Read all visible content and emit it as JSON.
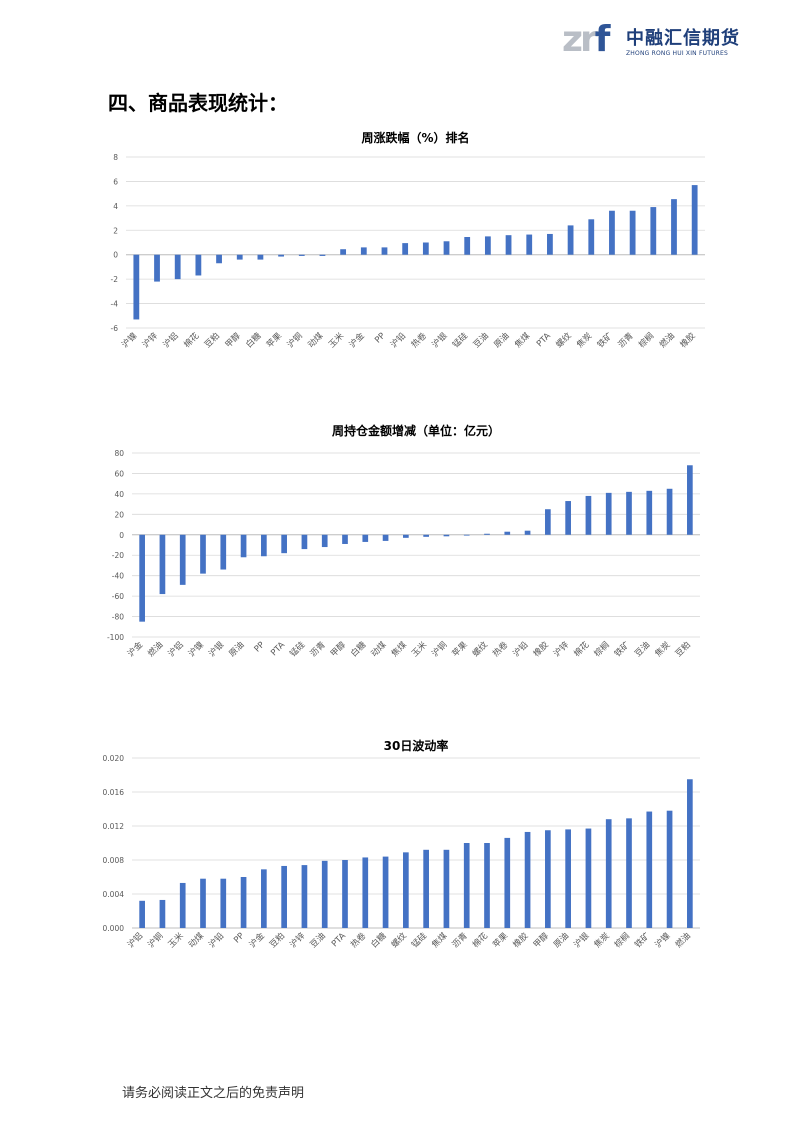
{
  "header": {
    "logo_mark_z": "z",
    "logo_mark_r": "r",
    "logo_mark_f": "f",
    "logo_cn": "中融汇信期货",
    "logo_en": "ZHONG RONG HUI XIN FUTURES"
  },
  "section_title": "四、商品表现统计：",
  "footer": "请务必阅读正文之后的免责声明",
  "colors": {
    "bar": "#4472c4",
    "grid": "#d9d9d9",
    "axis_text": "#595959"
  },
  "chart_data": [
    {
      "type": "bar",
      "title": "周涨跌幅（%）排名",
      "categories": [
        "沪镍",
        "沪锌",
        "沪铝",
        "棉花",
        "豆粕",
        "甲醇",
        "白糖",
        "苹果",
        "沪铜",
        "动煤",
        "玉米",
        "沪金",
        "PP",
        "沪铅",
        "热卷",
        "沪银",
        "锰硅",
        "豆油",
        "原油",
        "焦煤",
        "PTA",
        "螺纹",
        "焦炭",
        "铁矿",
        "沥青",
        "棕榈",
        "燃油",
        "橡胶"
      ],
      "values": [
        -5.3,
        -2.2,
        -2.0,
        -1.7,
        -0.7,
        -0.4,
        -0.4,
        -0.15,
        -0.1,
        -0.1,
        0.45,
        0.6,
        0.6,
        0.95,
        1.0,
        1.1,
        1.45,
        1.5,
        1.6,
        1.65,
        1.7,
        2.4,
        2.9,
        3.6,
        3.6,
        3.9,
        4.55,
        5.7
      ],
      "ylim": [
        -6,
        8
      ],
      "yticks": [
        -6,
        -4,
        -2,
        0,
        2,
        4,
        6,
        8
      ],
      "ytick_labels": [
        "-6",
        "-4",
        "-2",
        "0",
        "2",
        "4",
        "6",
        "8"
      ],
      "grid": true
    },
    {
      "type": "bar",
      "title": "周持仓金额增减（单位：亿元）",
      "categories": [
        "沪金",
        "燃油",
        "沪铝",
        "沪镍",
        "沪银",
        "原油",
        "PP",
        "PTA",
        "锰硅",
        "沥青",
        "甲醇",
        "白糖",
        "动煤",
        "焦煤",
        "玉米",
        "沪铜",
        "苹果",
        "螺纹",
        "热卷",
        "沪铅",
        "橡胶",
        "沪锌",
        "棉花",
        "棕榈",
        "铁矿",
        "豆油",
        "焦炭",
        "豆粕"
      ],
      "values": [
        -85,
        -58,
        -49,
        -38,
        -34,
        -22,
        -21,
        -18,
        -14,
        -12,
        -9,
        -7,
        -6,
        -3,
        -2,
        -1.5,
        -0.5,
        1,
        3,
        4,
        25,
        33,
        38,
        41,
        42,
        43,
        45,
        68
      ],
      "ylim": [
        -100,
        80
      ],
      "yticks": [
        -100,
        -80,
        -60,
        -40,
        -20,
        0,
        20,
        40,
        60,
        80
      ],
      "ytick_labels": [
        "-100",
        "-80",
        "-60",
        "-40",
        "-20",
        "0",
        "20",
        "40",
        "60",
        "80"
      ],
      "grid": true
    },
    {
      "type": "bar",
      "title": "30日波动率",
      "categories": [
        "沪铝",
        "沪铜",
        "玉米",
        "动煤",
        "沪铅",
        "PP",
        "沪金",
        "豆粕",
        "沪锌",
        "豆油",
        "PTA",
        "热卷",
        "白糖",
        "螺纹",
        "锰硅",
        "焦煤",
        "沥青",
        "棉花",
        "苹果",
        "橡胶",
        "甲醇",
        "原油",
        "沪银",
        "焦炭",
        "棕榈",
        "铁矿",
        "沪镍",
        "燃油"
      ],
      "values": [
        0.0032,
        0.0033,
        0.0053,
        0.0058,
        0.0058,
        0.006,
        0.0069,
        0.0073,
        0.0074,
        0.0079,
        0.008,
        0.0083,
        0.0084,
        0.0089,
        0.0092,
        0.0092,
        0.01,
        0.01,
        0.0106,
        0.0113,
        0.0115,
        0.0116,
        0.0117,
        0.0128,
        0.0129,
        0.0137,
        0.0138,
        0.0175
      ],
      "ylim": [
        0,
        0.02
      ],
      "yticks": [
        0,
        0.004,
        0.008,
        0.012,
        0.016,
        0.02
      ],
      "ytick_labels": [
        "0.000",
        "0.004",
        "0.008",
        "0.012",
        "0.016",
        "0.020"
      ],
      "grid": true
    }
  ]
}
